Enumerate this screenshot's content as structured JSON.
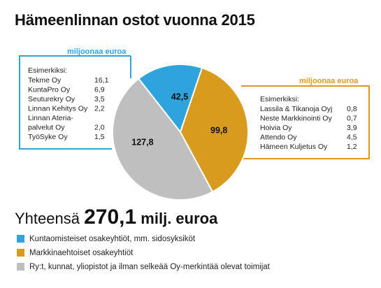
{
  "title": "Hämeenlinnan ostot vuonna 2015",
  "chart_data": {
    "type": "pie",
    "title": "Hämeenlinnan ostot vuonna 2015",
    "slices": [
      {
        "name": "Kuntaomisteiset osakeyhtiöt, mm. sidosyksiköt",
        "value": 42.5,
        "label": "42,5",
        "color": "#2ea3dd"
      },
      {
        "name": "Markkinaehtoiset osakeyhtiöt",
        "value": 99.8,
        "label": "99,8",
        "color": "#d99b1e"
      },
      {
        "name": "Ry:t, kunnat, yliopistot ja ilman selkeää Oy-merkintää olevat toimijat",
        "value": 127.8,
        "label": "127,8",
        "color": "#bfbfbf"
      }
    ],
    "total": 270.1,
    "unit": "milj. euroa"
  },
  "left_box": {
    "unit_label": "miljoonaa euroa",
    "heading": "Esimerkiksi:",
    "rows": [
      {
        "name": "Tekme Oy",
        "value": "16,1"
      },
      {
        "name": "KuntaPro Oy",
        "value": "6,9"
      },
      {
        "name": "Seuturekry Oy",
        "value": "3,5"
      },
      {
        "name": "Linnan Kehitys Oy",
        "value": "2,2"
      },
      {
        "name": "Linnan Ateria-",
        "value": ""
      },
      {
        "name": "palvelut Oy",
        "value": "2,0"
      },
      {
        "name": "TyöSyke Oy",
        "value": "1,5"
      }
    ]
  },
  "right_box": {
    "unit_label": "miljoonaa euroa",
    "heading": "Esimerkiksi:",
    "rows": [
      {
        "name": "Lassila & Tikanoja Oyj",
        "value": "0,8"
      },
      {
        "name": "Neste Markkinointi Oy",
        "value": "0,7"
      },
      {
        "name": "Hoivia Oy",
        "value": "3,9"
      },
      {
        "name": "Attendo Oy",
        "value": "4,5"
      },
      {
        "name": "Hämeen Kuljetus Oy",
        "value": "1,2"
      }
    ]
  },
  "total": {
    "prefix": "Yhteensä",
    "value": "270,1",
    "unit": "milj. euroa"
  },
  "legend": [
    {
      "label": "Kuntaomisteiset osakeyhtiöt, mm. sidosyksiköt",
      "color": "#2ea3dd"
    },
    {
      "label": "Markkinaehtoiset osakeyhtiöt",
      "color": "#d99b1e"
    },
    {
      "label": "Ry:t, kunnat, yliopistot ja ilman selkeää Oy-merkintää olevat toimijat",
      "color": "#bfbfbf"
    }
  ]
}
